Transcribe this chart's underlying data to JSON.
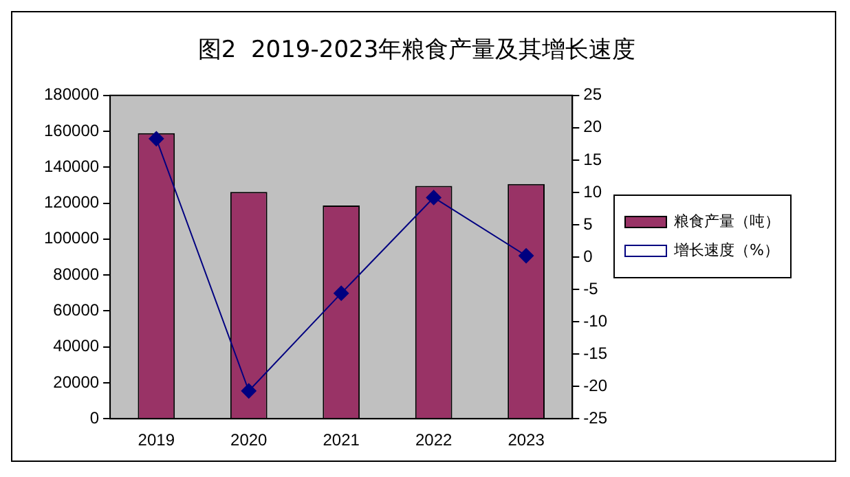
{
  "chart_data": {
    "type": "bar",
    "title": "图2  2019-2023年粮食产量及其增长速度",
    "categories": [
      "2019",
      "2020",
      "2021",
      "2022",
      "2023"
    ],
    "series": [
      {
        "name": "粮食产量（吨）",
        "color": "#993366",
        "values": [
          159000,
          126300,
          118700,
          129600,
          130700
        ]
      },
      {
        "name": "增长速度（%）",
        "type": "line",
        "axis": "y2",
        "color": "#000080",
        "values": [
          18.3,
          -20.7,
          -5.6,
          9.2,
          0.2
        ]
      }
    ],
    "ylim": [
      0,
      180000
    ],
    "yticks": [
      0,
      20000,
      40000,
      60000,
      80000,
      100000,
      120000,
      140000,
      160000,
      180000
    ],
    "y2lim": [
      -25,
      25
    ],
    "y2ticks": [
      -25,
      -20,
      -15,
      -10,
      -5,
      0,
      5,
      10,
      15,
      20,
      25
    ],
    "grid": false,
    "legend": "right",
    "marker": "diamond",
    "line_style": "solid"
  }
}
